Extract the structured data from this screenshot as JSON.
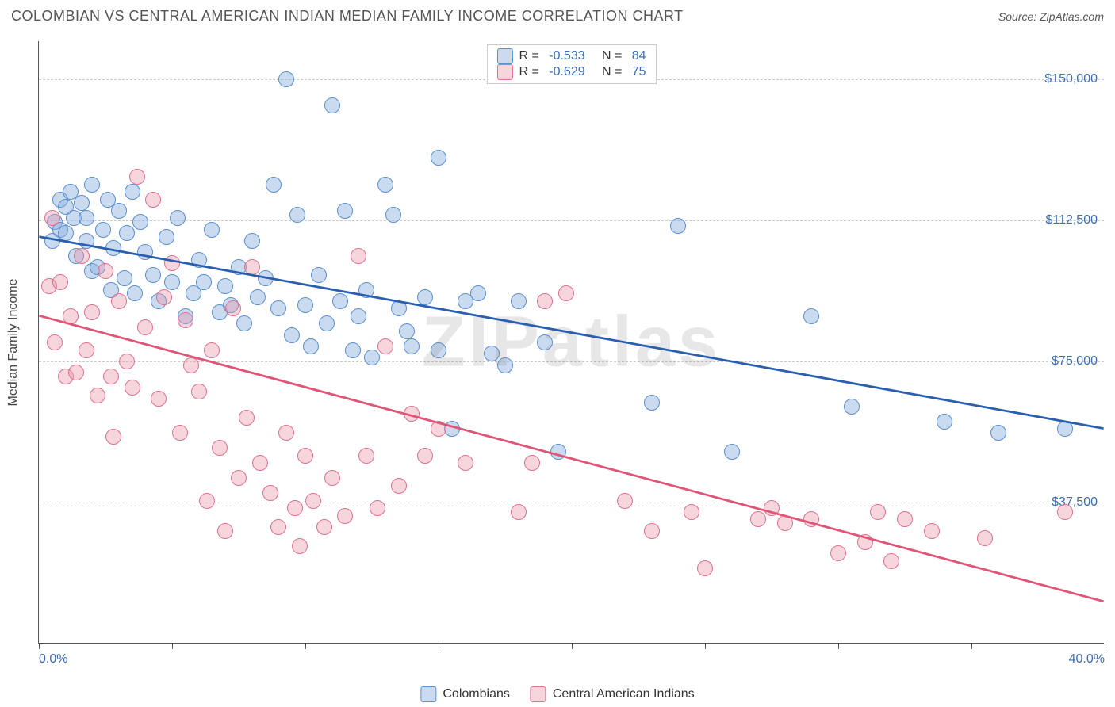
{
  "title": "COLOMBIAN VS CENTRAL AMERICAN INDIAN MEDIAN FAMILY INCOME CORRELATION CHART",
  "source_label": "Source: ZipAtlas.com",
  "watermark": "ZIPatlas",
  "yaxis_title": "Median Family Income",
  "axes": {
    "xmin": 0.0,
    "xmax": 40.0,
    "ymin": 0,
    "ymax": 160000,
    "xtick_label_left": "0.0%",
    "xtick_label_right": "40.0%",
    "xtick_positions": [
      0,
      5,
      10,
      15,
      20,
      25,
      30,
      35,
      40
    ],
    "yticks": [
      {
        "value": 37500,
        "label": "$37,500"
      },
      {
        "value": 75000,
        "label": "$75,000"
      },
      {
        "value": 112500,
        "label": "$112,500"
      },
      {
        "value": 150000,
        "label": "$150,000"
      }
    ],
    "xtick_label_color": "#3b6db3",
    "ytick_label_color": "#3b6db3",
    "axis_line_color": "#555555",
    "grid_color": "#cccccc",
    "grid_dash": true
  },
  "series": [
    {
      "id": "colombians",
      "label": "Colombians",
      "fill_color": "rgba(137,176,222,0.45)",
      "border_color": "#5a8fd0",
      "marker_radius": 10,
      "trend": {
        "x1": 0.0,
        "y1": 108000,
        "x2": 40.0,
        "y2": 57000,
        "color": "#2a5fb0",
        "width": 2.8
      },
      "R_label": "R = ",
      "R_value": "-0.533",
      "N_label": "   N = ",
      "N_value": "84",
      "points": [
        {
          "x": 0.5,
          "y": 107000
        },
        {
          "x": 0.6,
          "y": 112000
        },
        {
          "x": 0.8,
          "y": 118000
        },
        {
          "x": 0.8,
          "y": 110000
        },
        {
          "x": 1.0,
          "y": 116000
        },
        {
          "x": 1.0,
          "y": 109000
        },
        {
          "x": 1.2,
          "y": 120000
        },
        {
          "x": 1.3,
          "y": 113000
        },
        {
          "x": 1.4,
          "y": 103000
        },
        {
          "x": 1.6,
          "y": 117000
        },
        {
          "x": 1.8,
          "y": 107000
        },
        {
          "x": 1.8,
          "y": 113000
        },
        {
          "x": 2.0,
          "y": 122000
        },
        {
          "x": 2.0,
          "y": 99000
        },
        {
          "x": 2.2,
          "y": 100000
        },
        {
          "x": 2.4,
          "y": 110000
        },
        {
          "x": 2.6,
          "y": 118000
        },
        {
          "x": 2.7,
          "y": 94000
        },
        {
          "x": 2.8,
          "y": 105000
        },
        {
          "x": 3.0,
          "y": 115000
        },
        {
          "x": 3.2,
          "y": 97000
        },
        {
          "x": 3.3,
          "y": 109000
        },
        {
          "x": 3.5,
          "y": 120000
        },
        {
          "x": 3.6,
          "y": 93000
        },
        {
          "x": 3.8,
          "y": 112000
        },
        {
          "x": 4.0,
          "y": 104000
        },
        {
          "x": 4.3,
          "y": 98000
        },
        {
          "x": 4.5,
          "y": 91000
        },
        {
          "x": 4.8,
          "y": 108000
        },
        {
          "x": 5.0,
          "y": 96000
        },
        {
          "x": 5.2,
          "y": 113000
        },
        {
          "x": 5.5,
          "y": 87000
        },
        {
          "x": 5.8,
          "y": 93000
        },
        {
          "x": 6.0,
          "y": 102000
        },
        {
          "x": 6.2,
          "y": 96000
        },
        {
          "x": 6.5,
          "y": 110000
        },
        {
          "x": 6.8,
          "y": 88000
        },
        {
          "x": 7.0,
          "y": 95000
        },
        {
          "x": 7.2,
          "y": 90000
        },
        {
          "x": 7.5,
          "y": 100000
        },
        {
          "x": 7.7,
          "y": 85000
        },
        {
          "x": 8.0,
          "y": 107000
        },
        {
          "x": 8.2,
          "y": 92000
        },
        {
          "x": 8.5,
          "y": 97000
        },
        {
          "x": 8.8,
          "y": 122000
        },
        {
          "x": 9.0,
          "y": 89000
        },
        {
          "x": 9.3,
          "y": 150000
        },
        {
          "x": 9.5,
          "y": 82000
        },
        {
          "x": 9.7,
          "y": 114000
        },
        {
          "x": 10.0,
          "y": 90000
        },
        {
          "x": 10.2,
          "y": 79000
        },
        {
          "x": 10.5,
          "y": 98000
        },
        {
          "x": 10.8,
          "y": 85000
        },
        {
          "x": 11.0,
          "y": 143000
        },
        {
          "x": 11.3,
          "y": 91000
        },
        {
          "x": 11.5,
          "y": 115000
        },
        {
          "x": 11.8,
          "y": 78000
        },
        {
          "x": 12.0,
          "y": 87000
        },
        {
          "x": 12.3,
          "y": 94000
        },
        {
          "x": 12.5,
          "y": 76000
        },
        {
          "x": 13.0,
          "y": 122000
        },
        {
          "x": 13.3,
          "y": 114000
        },
        {
          "x": 13.5,
          "y": 89000
        },
        {
          "x": 13.8,
          "y": 83000
        },
        {
          "x": 14.0,
          "y": 79000
        },
        {
          "x": 14.5,
          "y": 92000
        },
        {
          "x": 15.0,
          "y": 129000
        },
        {
          "x": 15.0,
          "y": 78000
        },
        {
          "x": 15.5,
          "y": 57000
        },
        {
          "x": 16.0,
          "y": 91000
        },
        {
          "x": 16.5,
          "y": 93000
        },
        {
          "x": 17.0,
          "y": 77000
        },
        {
          "x": 17.5,
          "y": 74000
        },
        {
          "x": 18.0,
          "y": 91000
        },
        {
          "x": 19.0,
          "y": 80000
        },
        {
          "x": 19.5,
          "y": 51000
        },
        {
          "x": 23.0,
          "y": 64000
        },
        {
          "x": 24.0,
          "y": 111000
        },
        {
          "x": 26.0,
          "y": 51000
        },
        {
          "x": 29.0,
          "y": 87000
        },
        {
          "x": 30.5,
          "y": 63000
        },
        {
          "x": 34.0,
          "y": 59000
        },
        {
          "x": 36.0,
          "y": 56000
        },
        {
          "x": 38.5,
          "y": 57000
        }
      ]
    },
    {
      "id": "central_american_indians",
      "label": "Central American Indians",
      "fill_color": "rgba(232,151,170,0.40)",
      "border_color": "#dd728f",
      "marker_radius": 10,
      "trend": {
        "x1": 0.0,
        "y1": 87000,
        "x2": 40.0,
        "y2": 11000,
        "color": "#e05577",
        "width": 2.8
      },
      "R_label": "R = ",
      "R_value": "-0.629",
      "N_label": "   N = ",
      "N_value": "75",
      "points": [
        {
          "x": 0.4,
          "y": 95000
        },
        {
          "x": 0.5,
          "y": 113000
        },
        {
          "x": 0.6,
          "y": 80000
        },
        {
          "x": 0.8,
          "y": 96000
        },
        {
          "x": 1.0,
          "y": 71000
        },
        {
          "x": 1.2,
          "y": 87000
        },
        {
          "x": 1.4,
          "y": 72000
        },
        {
          "x": 1.6,
          "y": 103000
        },
        {
          "x": 1.8,
          "y": 78000
        },
        {
          "x": 2.0,
          "y": 88000
        },
        {
          "x": 2.2,
          "y": 66000
        },
        {
          "x": 2.5,
          "y": 99000
        },
        {
          "x": 2.7,
          "y": 71000
        },
        {
          "x": 2.8,
          "y": 55000
        },
        {
          "x": 3.0,
          "y": 91000
        },
        {
          "x": 3.3,
          "y": 75000
        },
        {
          "x": 3.5,
          "y": 68000
        },
        {
          "x": 3.7,
          "y": 124000
        },
        {
          "x": 4.0,
          "y": 84000
        },
        {
          "x": 4.3,
          "y": 118000
        },
        {
          "x": 4.5,
          "y": 65000
        },
        {
          "x": 4.7,
          "y": 92000
        },
        {
          "x": 5.0,
          "y": 101000
        },
        {
          "x": 5.3,
          "y": 56000
        },
        {
          "x": 5.5,
          "y": 86000
        },
        {
          "x": 5.7,
          "y": 74000
        },
        {
          "x": 6.0,
          "y": 67000
        },
        {
          "x": 6.3,
          "y": 38000
        },
        {
          "x": 6.5,
          "y": 78000
        },
        {
          "x": 6.8,
          "y": 52000
        },
        {
          "x": 7.0,
          "y": 30000
        },
        {
          "x": 7.3,
          "y": 89000
        },
        {
          "x": 7.5,
          "y": 44000
        },
        {
          "x": 7.8,
          "y": 60000
        },
        {
          "x": 8.0,
          "y": 100000
        },
        {
          "x": 8.3,
          "y": 48000
        },
        {
          "x": 8.7,
          "y": 40000
        },
        {
          "x": 9.0,
          "y": 31000
        },
        {
          "x": 9.3,
          "y": 56000
        },
        {
          "x": 9.6,
          "y": 36000
        },
        {
          "x": 9.8,
          "y": 26000
        },
        {
          "x": 10.0,
          "y": 50000
        },
        {
          "x": 10.3,
          "y": 38000
        },
        {
          "x": 10.7,
          "y": 31000
        },
        {
          "x": 11.0,
          "y": 44000
        },
        {
          "x": 11.5,
          "y": 34000
        },
        {
          "x": 12.0,
          "y": 103000
        },
        {
          "x": 12.3,
          "y": 50000
        },
        {
          "x": 12.7,
          "y": 36000
        },
        {
          "x": 13.0,
          "y": 79000
        },
        {
          "x": 13.5,
          "y": 42000
        },
        {
          "x": 14.0,
          "y": 61000
        },
        {
          "x": 14.5,
          "y": 50000
        },
        {
          "x": 15.0,
          "y": 57000
        },
        {
          "x": 16.0,
          "y": 48000
        },
        {
          "x": 18.0,
          "y": 35000
        },
        {
          "x": 18.5,
          "y": 48000
        },
        {
          "x": 19.0,
          "y": 91000
        },
        {
          "x": 19.8,
          "y": 93000
        },
        {
          "x": 22.0,
          "y": 38000
        },
        {
          "x": 23.0,
          "y": 30000
        },
        {
          "x": 24.5,
          "y": 35000
        },
        {
          "x": 27.0,
          "y": 33000
        },
        {
          "x": 27.5,
          "y": 36000
        },
        {
          "x": 28.0,
          "y": 32000
        },
        {
          "x": 29.0,
          "y": 33000
        },
        {
          "x": 30.0,
          "y": 24000
        },
        {
          "x": 31.0,
          "y": 27000
        },
        {
          "x": 31.5,
          "y": 35000
        },
        {
          "x": 32.0,
          "y": 22000
        },
        {
          "x": 32.5,
          "y": 33000
        },
        {
          "x": 33.5,
          "y": 30000
        },
        {
          "x": 35.5,
          "y": 28000
        },
        {
          "x": 38.5,
          "y": 35000
        },
        {
          "x": 25.0,
          "y": 20000
        }
      ]
    }
  ],
  "bottom_legend_title": ""
}
